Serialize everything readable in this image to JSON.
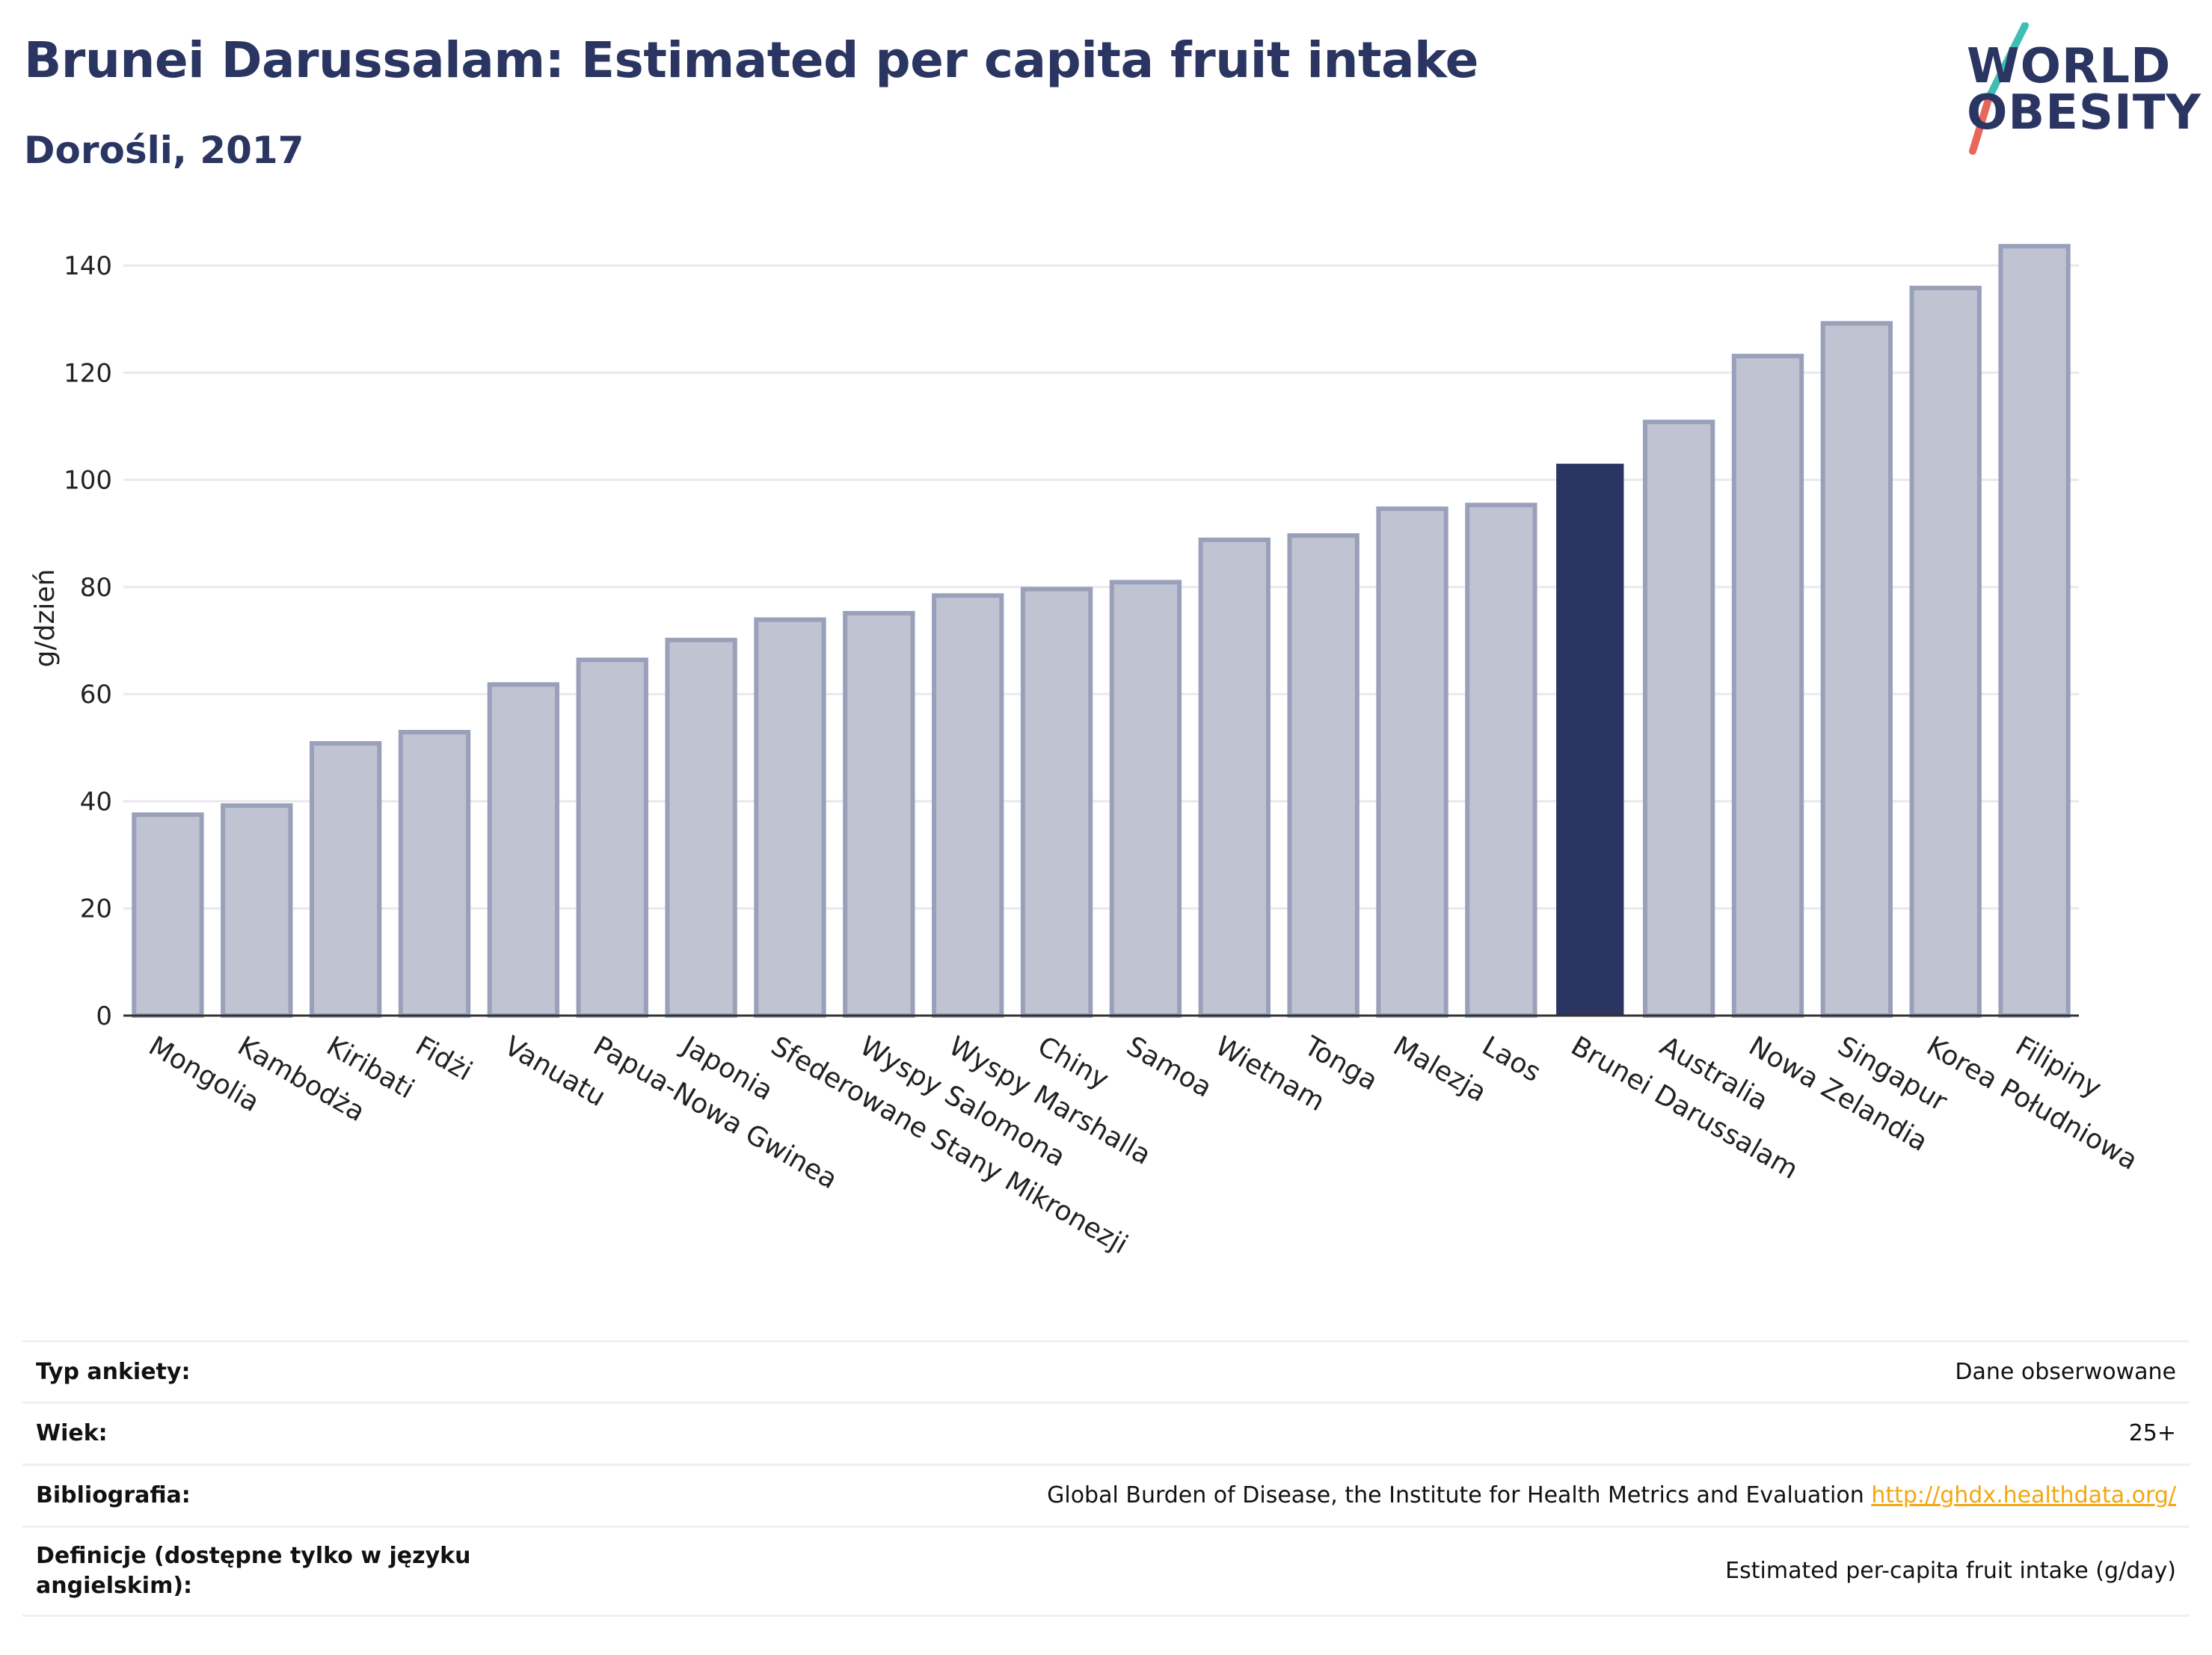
{
  "header": {
    "title": "Brunei Darussalam: Estimated per capita fruit intake",
    "subtitle": "Dorośli, 2017"
  },
  "logo": {
    "line1": "WORLD",
    "line2": "OBESITY"
  },
  "colors": {
    "highlight": "#2a3562",
    "bar_fill": "#c0c3d1",
    "bar_stroke": "#9aa0ba",
    "grid": "#e8e9ee",
    "axis": "#333333"
  },
  "chart_data": {
    "type": "bar",
    "title": "Brunei Darussalam: Estimated per capita fruit intake",
    "subtitle": "Dorośli, 2017",
    "xlabel": "",
    "ylabel": "g/dzień",
    "ylim": [
      0,
      150
    ],
    "yticks": [
      0,
      20,
      40,
      60,
      80,
      100,
      120,
      140
    ],
    "grid": true,
    "highlight": "Brunei Darussalam",
    "categories": [
      "Mongolia",
      "Kambodża",
      "Kiribati",
      "Fidżi",
      "Vanuatu",
      "Papua-Nowa Gwinea",
      "Japonia",
      "Sfederowane Stany Mikronezji",
      "Wyspy Salomona",
      "Wyspy Marshalla",
      "Chiny",
      "Samoa",
      "Wietnam",
      "Tonga",
      "Malezja",
      "Laos",
      "Brunei Darussalam",
      "Australia",
      "Nowa Zelandia",
      "Singapur",
      "Korea Południowa",
      "Filipiny"
    ],
    "values": [
      37.5,
      39.2,
      50.8,
      52.9,
      61.8,
      66.4,
      70.1,
      73.9,
      75.1,
      78.4,
      79.6,
      80.9,
      88.8,
      89.6,
      94.6,
      95.3,
      103.0,
      110.8,
      123.1,
      129.2,
      135.8,
      143.6
    ]
  },
  "meta": {
    "rows": [
      {
        "key": "Typ ankiety:",
        "value": "Dane obserwowane"
      },
      {
        "key": "Wiek:",
        "value": "25+"
      },
      {
        "key": "Bibliografia:",
        "value": "Global Burden of Disease, the Institute for Health Metrics and Evaluation",
        "link": "http://ghdx.healthdata.org/"
      },
      {
        "key": "Definicje (dostępne tylko w języku angielskim):",
        "value": "Estimated per-capita fruit intake (g/day)"
      }
    ]
  }
}
